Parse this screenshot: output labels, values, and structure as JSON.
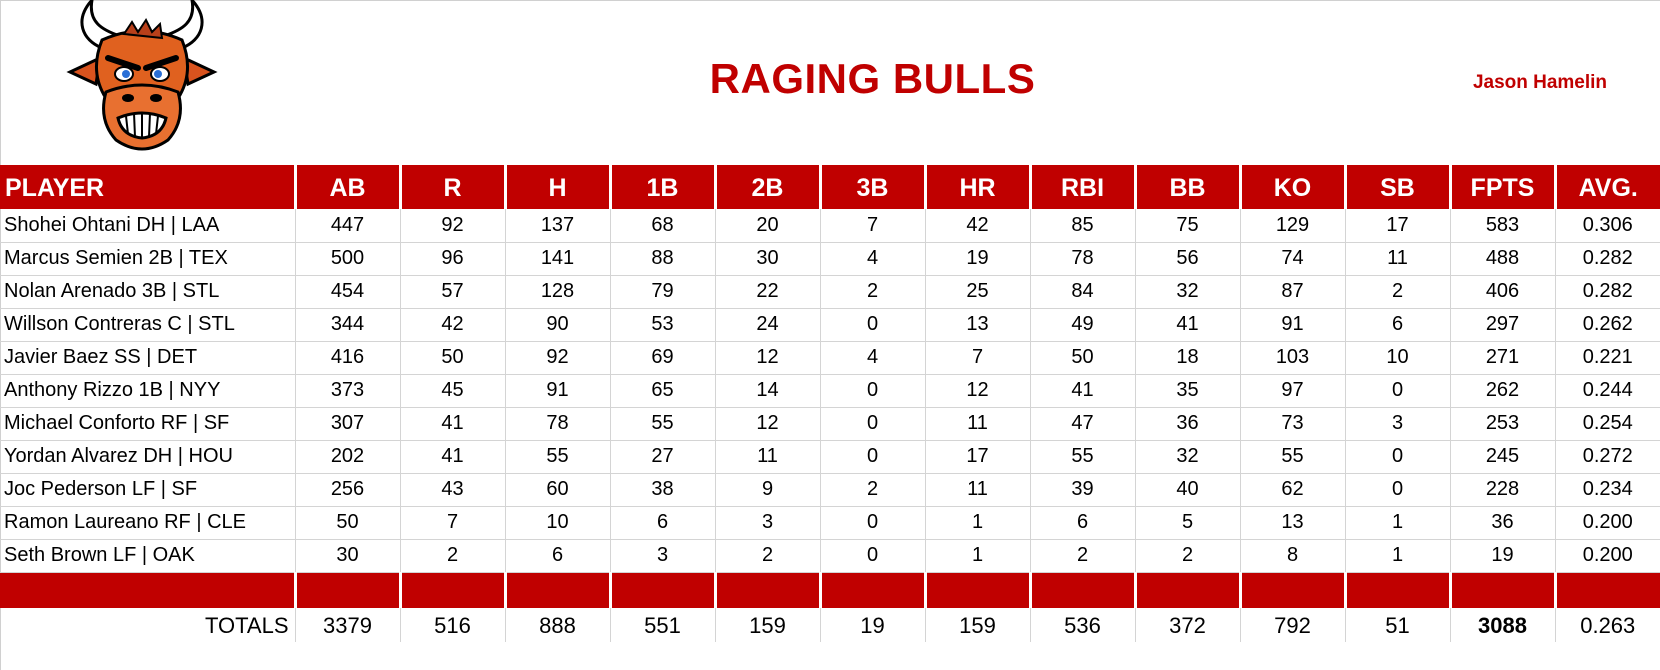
{
  "header": {
    "team_name": "RAGING BULLS",
    "owner": "Jason Hamelin"
  },
  "colors": {
    "accent": "#c00000",
    "header_text": "#ffffff"
  },
  "logo": {
    "icon": "angry-bull-icon"
  },
  "table": {
    "columns": [
      "PLAYER",
      "AB",
      "R",
      "H",
      "1B",
      "2B",
      "3B",
      "HR",
      "RBI",
      "BB",
      "KO",
      "SB",
      "FPTS",
      "AVG."
    ],
    "rows": [
      [
        "Shohei Ohtani DH | LAA",
        "447",
        "92",
        "137",
        "68",
        "20",
        "7",
        "42",
        "85",
        "75",
        "129",
        "17",
        "583",
        "0.306"
      ],
      [
        "Marcus Semien 2B | TEX",
        "500",
        "96",
        "141",
        "88",
        "30",
        "4",
        "19",
        "78",
        "56",
        "74",
        "11",
        "488",
        "0.282"
      ],
      [
        "Nolan Arenado 3B | STL",
        "454",
        "57",
        "128",
        "79",
        "22",
        "2",
        "25",
        "84",
        "32",
        "87",
        "2",
        "406",
        "0.282"
      ],
      [
        "Willson Contreras C | STL",
        "344",
        "42",
        "90",
        "53",
        "24",
        "0",
        "13",
        "49",
        "41",
        "91",
        "6",
        "297",
        "0.262"
      ],
      [
        "Javier Baez SS | DET",
        "416",
        "50",
        "92",
        "69",
        "12",
        "4",
        "7",
        "50",
        "18",
        "103",
        "10",
        "271",
        "0.221"
      ],
      [
        "Anthony Rizzo 1B | NYY",
        "373",
        "45",
        "91",
        "65",
        "14",
        "0",
        "12",
        "41",
        "35",
        "97",
        "0",
        "262",
        "0.244"
      ],
      [
        "Michael Conforto RF | SF",
        "307",
        "41",
        "78",
        "55",
        "12",
        "0",
        "11",
        "47",
        "36",
        "73",
        "3",
        "253",
        "0.254"
      ],
      [
        "Yordan Alvarez DH | HOU",
        "202",
        "41",
        "55",
        "27",
        "11",
        "0",
        "17",
        "55",
        "32",
        "55",
        "0",
        "245",
        "0.272"
      ],
      [
        "Joc Pederson LF | SF",
        "256",
        "43",
        "60",
        "38",
        "9",
        "2",
        "11",
        "39",
        "40",
        "62",
        "0",
        "228",
        "0.234"
      ],
      [
        "Ramon Laureano RF | CLE",
        "50",
        "7",
        "10",
        "6",
        "3",
        "0",
        "1",
        "6",
        "5",
        "13",
        "1",
        "36",
        "0.200"
      ],
      [
        "Seth Brown LF | OAK",
        "30",
        "2",
        "6",
        "3",
        "2",
        "0",
        "1",
        "2",
        "2",
        "8",
        "1",
        "19",
        "0.200"
      ]
    ],
    "totals": [
      "TOTALS",
      "3379",
      "516",
      "888",
      "551",
      "159",
      "19",
      "159",
      "536",
      "372",
      "792",
      "51",
      "3088",
      "0.263"
    ]
  }
}
